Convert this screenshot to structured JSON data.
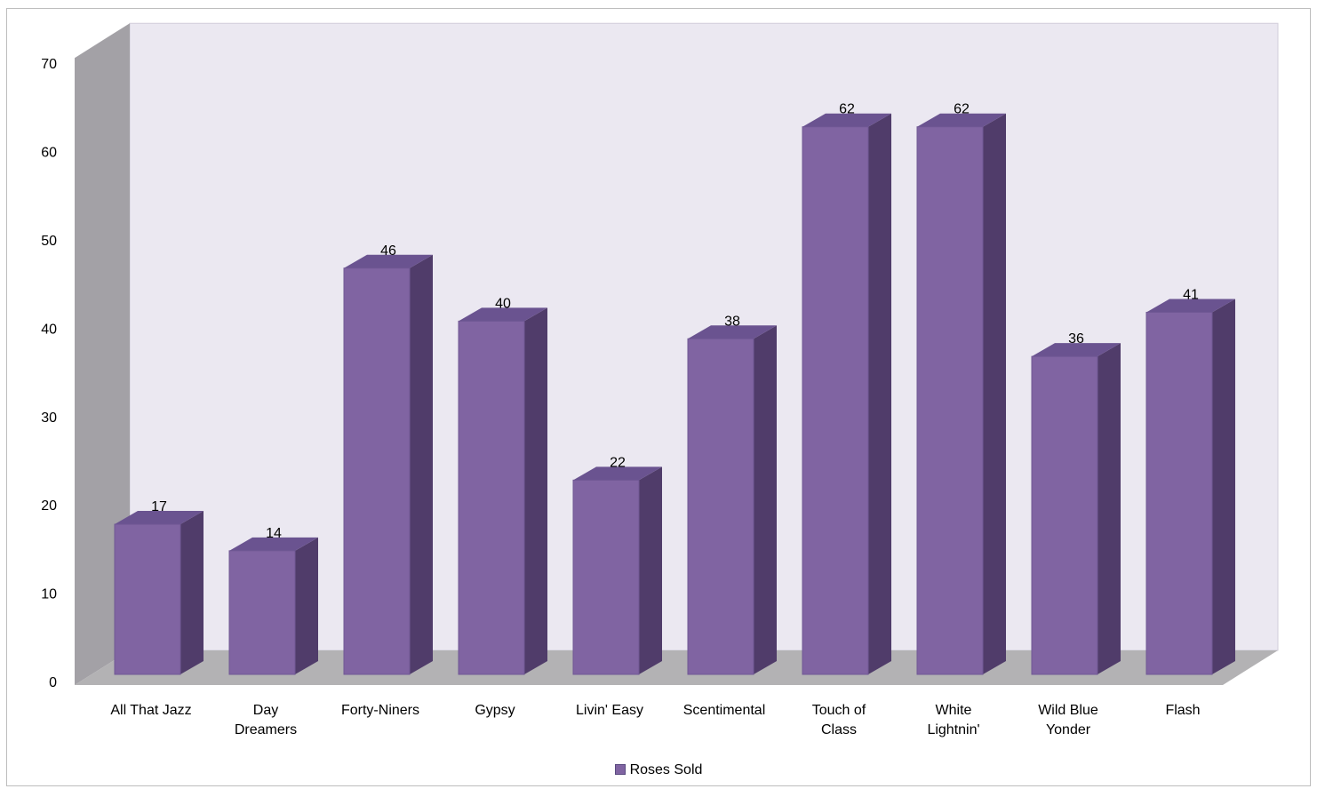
{
  "chart_data": {
    "type": "bar",
    "categories": [
      [
        "All That Jazz"
      ],
      [
        "Day",
        "Dreamers"
      ],
      [
        "Forty-Niners"
      ],
      [
        "Gypsy"
      ],
      [
        "Livin'   Easy"
      ],
      [
        "Scentimental"
      ],
      [
        "Touch of",
        "Class"
      ],
      [
        "White",
        "Lightnin'"
      ],
      [
        "Wild Blue",
        "Yonder"
      ],
      [
        "Flash"
      ]
    ],
    "series": [
      {
        "name": "Roses Sold",
        "values": [
          17,
          14,
          46,
          40,
          22,
          38,
          62,
          62,
          36,
          41
        ]
      }
    ],
    "ylim": [
      0,
      70
    ],
    "yticks": [
      0,
      10,
      20,
      30,
      40,
      50,
      60,
      70
    ],
    "data_labels": true,
    "legend_position": "bottom",
    "style": "3d-column"
  },
  "legend": {
    "label": "Roses Sold"
  },
  "colors": {
    "bar_front": "#8064a2",
    "bar_top": "#6a5390",
    "bar_side": "#503c6a",
    "back_wall": "#ebe8f1",
    "side_wall": "#a3a1a6",
    "floor": "#b3b2b4"
  }
}
